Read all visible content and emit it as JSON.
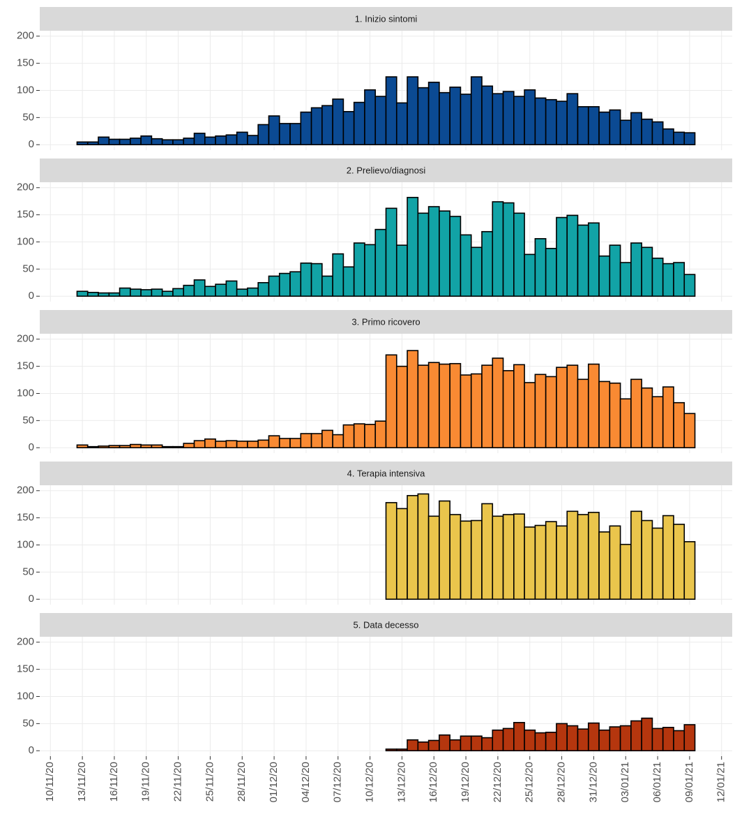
{
  "chart_data": [
    {
      "type": "bar",
      "title": "1. Inizio sintomi",
      "color": "#0b4a93",
      "x": [
        "13/11/20",
        "14/11/20",
        "15/11/20",
        "16/11/20",
        "17/11/20",
        "18/11/20",
        "19/11/20",
        "20/11/20",
        "21/11/20",
        "22/11/20",
        "23/11/20",
        "24/11/20",
        "25/11/20",
        "26/11/20",
        "27/11/20",
        "28/11/20",
        "29/11/20",
        "30/11/20",
        "01/12/20",
        "02/12/20",
        "03/12/20",
        "04/12/20",
        "05/12/20",
        "06/12/20",
        "07/12/20",
        "08/12/20",
        "09/12/20",
        "10/12/20",
        "11/12/20",
        "12/12/20",
        "13/12/20",
        "14/12/20",
        "15/12/20",
        "16/12/20",
        "17/12/20",
        "18/12/20",
        "19/12/20",
        "20/12/20",
        "21/12/20",
        "22/12/20",
        "23/12/20",
        "24/12/20",
        "25/12/20",
        "26/12/20",
        "27/12/20",
        "28/12/20",
        "29/12/20",
        "30/12/20",
        "31/12/20",
        "01/01/21",
        "02/01/21",
        "03/01/21",
        "04/01/21",
        "05/01/21",
        "06/01/21",
        "07/01/21",
        "08/01/21",
        "09/01/21"
      ],
      "values": [
        5,
        5,
        14,
        10,
        10,
        12,
        16,
        11,
        9,
        9,
        12,
        21,
        14,
        16,
        18,
        23,
        17,
        37,
        53,
        39,
        39,
        60,
        68,
        72,
        84,
        61,
        78,
        101,
        89,
        125,
        77,
        125,
        105,
        115,
        96,
        106,
        93,
        125,
        108,
        94,
        98,
        89,
        101,
        86,
        83,
        80,
        94,
        70,
        70,
        60,
        64,
        45,
        59,
        47,
        42,
        29,
        23,
        22
      ],
      "xlim": [
        "09/11/20",
        "13/01/21"
      ],
      "ylim": [
        -10,
        210
      ],
      "yticks": [
        0,
        50,
        100,
        150,
        200
      ]
    },
    {
      "type": "bar",
      "title": "2. Prelievo/diagnosi",
      "color": "#12a3a6",
      "x": [
        "13/11/20",
        "14/11/20",
        "15/11/20",
        "16/11/20",
        "17/11/20",
        "18/11/20",
        "19/11/20",
        "20/11/20",
        "21/11/20",
        "22/11/20",
        "23/11/20",
        "24/11/20",
        "25/11/20",
        "26/11/20",
        "27/11/20",
        "28/11/20",
        "29/11/20",
        "30/11/20",
        "01/12/20",
        "02/12/20",
        "03/12/20",
        "04/12/20",
        "05/12/20",
        "06/12/20",
        "07/12/20",
        "08/12/20",
        "09/12/20",
        "10/12/20",
        "11/12/20",
        "12/12/20",
        "13/12/20",
        "14/12/20",
        "15/12/20",
        "16/12/20",
        "17/12/20",
        "18/12/20",
        "19/12/20",
        "20/12/20",
        "21/12/20",
        "22/12/20",
        "23/12/20",
        "24/12/20",
        "25/12/20",
        "26/12/20",
        "27/12/20",
        "28/12/20",
        "29/12/20",
        "30/12/20",
        "31/12/20",
        "01/01/21",
        "02/01/21",
        "03/01/21",
        "04/01/21",
        "05/01/21",
        "06/01/21",
        "07/01/21",
        "08/01/21",
        "09/01/21"
      ],
      "values": [
        9,
        7,
        6,
        6,
        15,
        13,
        12,
        13,
        9,
        14,
        20,
        30,
        18,
        22,
        28,
        13,
        15,
        25,
        37,
        42,
        45,
        61,
        60,
        37,
        78,
        54,
        98,
        95,
        123,
        162,
        94,
        182,
        153,
        165,
        157,
        147,
        113,
        90,
        119,
        174,
        172,
        153,
        77,
        106,
        88,
        145,
        149,
        131,
        135,
        74,
        94,
        62,
        98,
        90,
        70,
        60,
        62,
        40
      ],
      "xlim": [
        "09/11/20",
        "13/01/21"
      ],
      "ylim": [
        -10,
        210
      ],
      "yticks": [
        0,
        50,
        100,
        150,
        200
      ]
    },
    {
      "type": "bar",
      "title": "3. Primo ricovero",
      "color": "#f98a33",
      "x": [
        "13/11/20",
        "14/11/20",
        "15/11/20",
        "16/11/20",
        "17/11/20",
        "18/11/20",
        "19/11/20",
        "20/11/20",
        "21/11/20",
        "22/11/20",
        "23/11/20",
        "24/11/20",
        "25/11/20",
        "26/11/20",
        "27/11/20",
        "28/11/20",
        "29/11/20",
        "30/11/20",
        "01/12/20",
        "02/12/20",
        "03/12/20",
        "04/12/20",
        "05/12/20",
        "06/12/20",
        "07/12/20",
        "08/12/20",
        "09/12/20",
        "10/12/20",
        "11/12/20",
        "12/12/20",
        "13/12/20",
        "14/12/20",
        "15/12/20",
        "16/12/20",
        "17/12/20",
        "18/12/20",
        "19/12/20",
        "20/12/20",
        "21/12/20",
        "22/12/20",
        "23/12/20",
        "24/12/20",
        "25/12/20",
        "26/12/20",
        "27/12/20",
        "28/12/20",
        "29/12/20",
        "30/12/20",
        "31/12/20",
        "01/01/21",
        "02/01/21",
        "03/01/21",
        "04/01/21",
        "05/01/21",
        "06/01/21",
        "07/01/21",
        "08/01/21",
        "09/01/21"
      ],
      "values": [
        5,
        2,
        3,
        4,
        4,
        6,
        5,
        5,
        2,
        2,
        8,
        13,
        16,
        12,
        13,
        12,
        12,
        14,
        22,
        17,
        17,
        26,
        26,
        32,
        24,
        42,
        44,
        43,
        49,
        171,
        150,
        179,
        152,
        157,
        154,
        155,
        134,
        136,
        152,
        165,
        142,
        153,
        120,
        135,
        131,
        148,
        152,
        126,
        154,
        122,
        119,
        90,
        126,
        110,
        94,
        112,
        83,
        63
      ],
      "xlim": [
        "09/11/20",
        "13/01/21"
      ],
      "ylim": [
        -10,
        210
      ],
      "yticks": [
        0,
        50,
        100,
        150,
        200
      ]
    },
    {
      "type": "bar",
      "title": "4. Terapia intensiva",
      "color": "#eac54c",
      "x": [
        "12/12/20",
        "13/12/20",
        "14/12/20",
        "15/12/20",
        "16/12/20",
        "17/12/20",
        "18/12/20",
        "19/12/20",
        "20/12/20",
        "21/12/20",
        "22/12/20",
        "23/12/20",
        "24/12/20",
        "25/12/20",
        "26/12/20",
        "27/12/20",
        "28/12/20",
        "29/12/20",
        "30/12/20",
        "31/12/20",
        "01/01/21",
        "02/01/21",
        "03/01/21",
        "04/01/21",
        "05/01/21",
        "06/01/21",
        "07/01/21",
        "08/01/21",
        "09/01/21"
      ],
      "values": [
        178,
        167,
        191,
        194,
        153,
        181,
        156,
        144,
        145,
        176,
        153,
        156,
        157,
        133,
        136,
        143,
        135,
        162,
        156,
        160,
        124,
        135,
        101,
        162,
        145,
        131,
        154,
        138,
        106
      ],
      "xlim": [
        "09/11/20",
        "13/01/21"
      ],
      "ylim": [
        -10,
        210
      ],
      "yticks": [
        0,
        50,
        100,
        150,
        200
      ]
    },
    {
      "type": "bar",
      "title": "5. Data decesso",
      "color": "#b5360e",
      "x": [
        "12/12/20",
        "13/12/20",
        "14/12/20",
        "15/12/20",
        "16/12/20",
        "17/12/20",
        "18/12/20",
        "19/12/20",
        "20/12/20",
        "21/12/20",
        "22/12/20",
        "23/12/20",
        "24/12/20",
        "25/12/20",
        "26/12/20",
        "27/12/20",
        "28/12/20",
        "29/12/20",
        "30/12/20",
        "31/12/20",
        "01/01/21",
        "02/01/21",
        "03/01/21",
        "04/01/21",
        "05/01/21",
        "06/01/21",
        "07/01/21",
        "08/01/21",
        "09/01/21"
      ],
      "values": [
        3,
        3,
        20,
        16,
        19,
        29,
        20,
        27,
        27,
        24,
        38,
        41,
        52,
        38,
        33,
        34,
        50,
        46,
        40,
        51,
        38,
        44,
        46,
        55,
        60,
        41,
        43,
        37,
        48
      ],
      "xlim": [
        "09/11/20",
        "13/01/21"
      ],
      "ylim": [
        -10,
        210
      ],
      "yticks": [
        0,
        50,
        100,
        150,
        200
      ],
      "xticks": [
        "10/11/20",
        "13/11/20",
        "16/11/20",
        "19/11/20",
        "22/11/20",
        "25/11/20",
        "28/11/20",
        "01/12/20",
        "04/12/20",
        "07/12/20",
        "10/12/20",
        "13/12/20",
        "16/12/20",
        "19/12/20",
        "22/12/20",
        "25/12/20",
        "28/12/20",
        "31/12/20",
        "03/01/21",
        "06/01/21",
        "09/01/21",
        "12/01/21"
      ]
    }
  ]
}
